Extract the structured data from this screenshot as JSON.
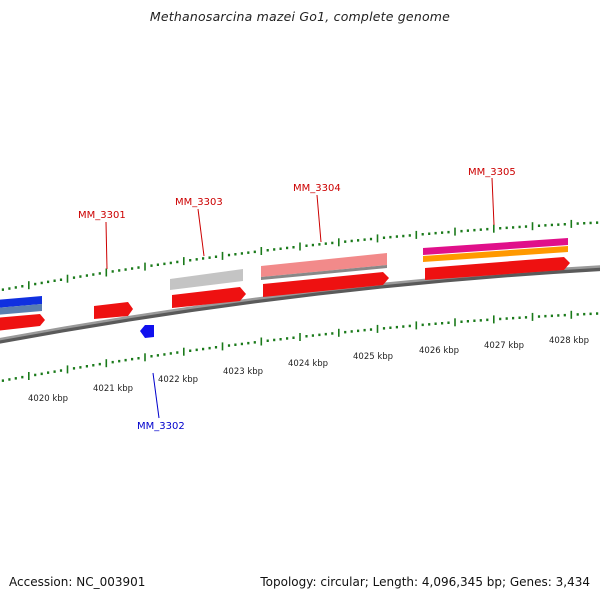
{
  "title": "Methanosarcina mazei Go1, complete genome",
  "footer": {
    "accession": "Accession: NC_003901",
    "summary": "Topology: circular; Length: 4,096,345 bp; Genes: 3,434"
  },
  "ticks": [
    {
      "label": "4020 kbp"
    },
    {
      "label": "4021 kbp"
    },
    {
      "label": "4022 kbp"
    },
    {
      "label": "4023 kbp"
    },
    {
      "label": "4024 kbp"
    },
    {
      "label": "4025 kbp"
    },
    {
      "label": "4026 kbp"
    },
    {
      "label": "4027 kbp"
    },
    {
      "label": "4028 kbp"
    }
  ],
  "gene_labels": [
    {
      "name": "MM_3301",
      "color": "#cc0000"
    },
    {
      "name": "MM_3302",
      "color": "#0000cc"
    },
    {
      "name": "MM_3303",
      "color": "#cc0000"
    },
    {
      "name": "MM_3304",
      "color": "#cc0000"
    },
    {
      "name": "MM_3305",
      "color": "#cc0000"
    }
  ],
  "colors": {
    "backbone": "#8a8a8a",
    "tick": "#1a7a1a",
    "cds_forward": "#ee1111",
    "cds_reverse": "#0000ee"
  }
}
